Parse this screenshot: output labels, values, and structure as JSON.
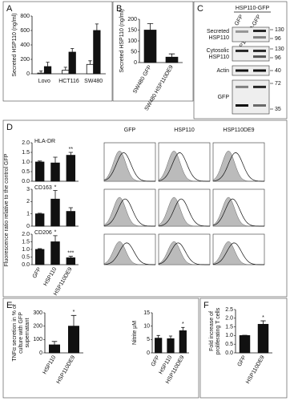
{
  "panel_labels": [
    "A",
    "B",
    "C",
    "D",
    "E",
    "F"
  ],
  "chart_data": [
    {
      "type": "bar",
      "ylabel": [
        "Secreted HSP110 (ng/ml)"
      ],
      "categories": [
        "Lovo",
        "HCT116",
        "SW480"
      ],
      "series": [
        {
          "color": "#ffffff",
          "values": [
            10,
            50,
            130
          ],
          "errors": [
            30,
            40,
            50
          ]
        },
        {
          "color": "#111111",
          "values": [
            100,
            300,
            600
          ],
          "errors": [
            60,
            50,
            90
          ]
        }
      ],
      "ylim": [
        0,
        800
      ],
      "yticks": [
        0,
        200,
        400,
        600,
        800
      ]
    },
    {
      "type": "bar",
      "ylabel": [
        "Secreted HSP110 (ng/ml)"
      ],
      "categories": [
        "SW480 GFP",
        "SW480 HSP110DE9"
      ],
      "values": [
        150,
        25
      ],
      "errors": [
        30,
        15
      ],
      "color": "#111111",
      "ylim": [
        0,
        200
      ],
      "yticks": [
        0,
        50,
        100,
        150,
        200
      ]
    },
    {
      "type": "bar",
      "title": "HLA-DR",
      "categories": [
        "GFP",
        "HSP110",
        "HSP110DE9"
      ],
      "values": [
        1.0,
        0.95,
        1.35
      ],
      "errors": [
        0.05,
        0.3,
        0.15
      ],
      "color": "#111111",
      "significance": [
        null,
        null,
        "**"
      ],
      "ylim": [
        0,
        2
      ],
      "yticks": [
        {
          "value": 0,
          "label": "0.0"
        },
        {
          "value": 0.5,
          "label": "0.5"
        },
        {
          "value": 1,
          "label": "1.0"
        },
        {
          "value": 1.5,
          "label": "1.5"
        },
        {
          "value": 2,
          "label": "2.0"
        }
      ]
    },
    {
      "type": "bar",
      "title": "CD163",
      "categories": [
        "GFP",
        "HSP110",
        "HSP110DE9"
      ],
      "values": [
        1,
        2.2,
        1.2
      ],
      "errors": [
        0.05,
        0.7,
        0.3
      ],
      "color": "#111111",
      "significance": [
        null,
        "*",
        null
      ],
      "ylim": [
        0,
        3
      ],
      "yticks": [
        0,
        1,
        2,
        3
      ]
    },
    {
      "type": "bar",
      "title": "CD206",
      "categories": [
        "GFP",
        "HSP110",
        "HSP110DE9"
      ],
      "values": [
        1.0,
        1.5,
        0.45
      ],
      "errors": [
        0.05,
        0.4,
        0.1
      ],
      "color": "#111111",
      "significance": [
        null,
        "*",
        "***"
      ],
      "ylim": [
        0,
        2
      ],
      "yticks": [
        {
          "value": 0,
          "label": "0.0"
        },
        {
          "value": 0.5,
          "label": "0.5"
        },
        {
          "value": 1,
          "label": "1.0"
        },
        {
          "value": 1.5,
          "label": "1.5"
        },
        {
          "value": 2,
          "label": "2.0"
        }
      ]
    },
    {
      "type": "bar",
      "ylabel": [
        "TNFα secretion in % of",
        "culture with GFP",
        "supernatant"
      ],
      "categories": [
        "HSP110",
        "HSP110DE9"
      ],
      "values": [
        60,
        200
      ],
      "errors": [
        25,
        80
      ],
      "color": "#111111",
      "significance": [
        null,
        "*"
      ],
      "ylim": [
        0,
        300
      ],
      "yticks": [
        0,
        100,
        200,
        300
      ]
    },
    {
      "type": "bar",
      "ylabel": [
        "Nitrite µM"
      ],
      "categories": [
        "GFP",
        "HSP110",
        "HSP110DE9"
      ],
      "values": [
        5.5,
        5.3,
        8.3
      ],
      "errors": [
        1,
        1,
        1.2
      ],
      "color": "#111111",
      "significance": [
        null,
        null,
        "*"
      ],
      "ylim": [
        0,
        15
      ],
      "yticks": [
        0,
        5,
        10,
        15
      ]
    },
    {
      "type": "bar",
      "ylabel": [
        "Fold increase of",
        "proliferating T cells"
      ],
      "categories": [
        "GFP",
        "HSP110DE9"
      ],
      "values": [
        1.0,
        1.65
      ],
      "errors": [
        0.02,
        0.2
      ],
      "color": "#111111",
      "significance": [
        null,
        "*"
      ],
      "ylim": [
        0,
        2.5
      ],
      "yticks": [
        {
          "value": 0,
          "label": "0.0"
        },
        {
          "value": 0.5,
          "label": "0.5"
        },
        {
          "value": 1,
          "label": "1.0"
        },
        {
          "value": 1.5,
          "label": "1.5"
        },
        {
          "value": 2,
          "label": "2.0"
        },
        {
          "value": 2.5,
          "label": "2.5"
        }
      ]
    }
  ],
  "d_ylabel": "Fluorescence ratio relative to the control GFP",
  "blot": {
    "header": "HSP110-GFP",
    "lanes": [
      "GFP",
      "HSP110DE9-GFP"
    ],
    "rows": [
      {
        "label": [
          "Secreted",
          "HSP110"
        ],
        "markers": [
          130,
          96
        ]
      },
      {
        "label": [
          "Cytosolic",
          "HSP110"
        ],
        "markers": [
          130,
          96
        ]
      },
      {
        "label": [
          "Actin"
        ],
        "markers": [
          40
        ]
      },
      {
        "label": [
          "GFP"
        ],
        "markers": [
          72,
          35
        ]
      }
    ]
  },
  "flow": {
    "columns": [
      "GFP",
      "HSP110",
      "HSP110DE9"
    ]
  }
}
